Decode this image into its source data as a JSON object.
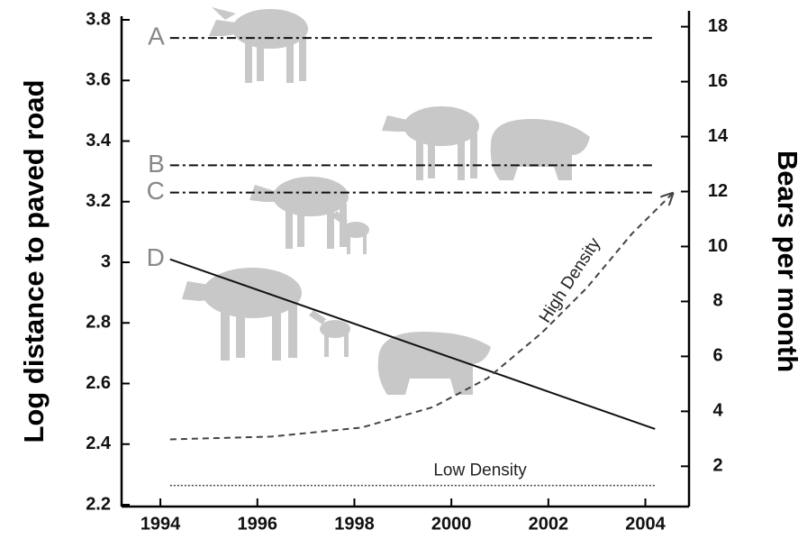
{
  "chart_data": {
    "type": "line",
    "y_label": "Log distance to paved road",
    "y2_label": "Bears per month",
    "xlim": [
      1993.2,
      2004.9
    ],
    "xticks": [
      1994,
      1996,
      1998,
      2000,
      2002,
      2004
    ],
    "ylim": [
      2.2,
      3.8
    ],
    "yticks": [
      2.2,
      2.4,
      2.6,
      2.8,
      3,
      3.2,
      3.4,
      3.6,
      3.8
    ],
    "y2lim": [
      0.6,
      18.25
    ],
    "y2ticks": [
      2,
      4,
      6,
      8,
      10,
      12,
      14,
      16,
      18
    ],
    "series": [
      {
        "name": "A",
        "color": "#111111",
        "dash": "dashdot",
        "x": [
          1994.2,
          2004.2
        ],
        "values": [
          3.74,
          3.74
        ]
      },
      {
        "name": "B",
        "color": "#111111",
        "dash": "dashdot",
        "x": [
          1994.2,
          2004.2
        ],
        "values": [
          3.32,
          3.32
        ]
      },
      {
        "name": "C",
        "color": "#111111",
        "dash": "dashdot",
        "x": [
          1994.2,
          2004.2
        ],
        "values": [
          3.23,
          3.23
        ]
      },
      {
        "name": "D",
        "color": "#111111",
        "dash": "solid",
        "x": [
          1994.2,
          2004.2
        ],
        "values": [
          3.01,
          2.45
        ]
      },
      {
        "name": "High Density",
        "color": "#444444",
        "dash": "dashed",
        "axis": "y2",
        "arrow": true,
        "x": [
          1994.2,
          1996.29,
          1998.15,
          1999.63,
          2000.75,
          2001.86,
          2002.79,
          2003.72,
          2004.56
        ],
        "values": [
          2.98,
          3.08,
          3.41,
          4.16,
          5.21,
          6.85,
          8.49,
          10.46,
          11.93
        ]
      },
      {
        "name": "Low Density",
        "color": "#444444",
        "dash": "dotted",
        "axis": "y2",
        "x": [
          1994.2,
          2004.2
        ],
        "values": [
          1.3,
          1.3
        ]
      }
    ]
  }
}
